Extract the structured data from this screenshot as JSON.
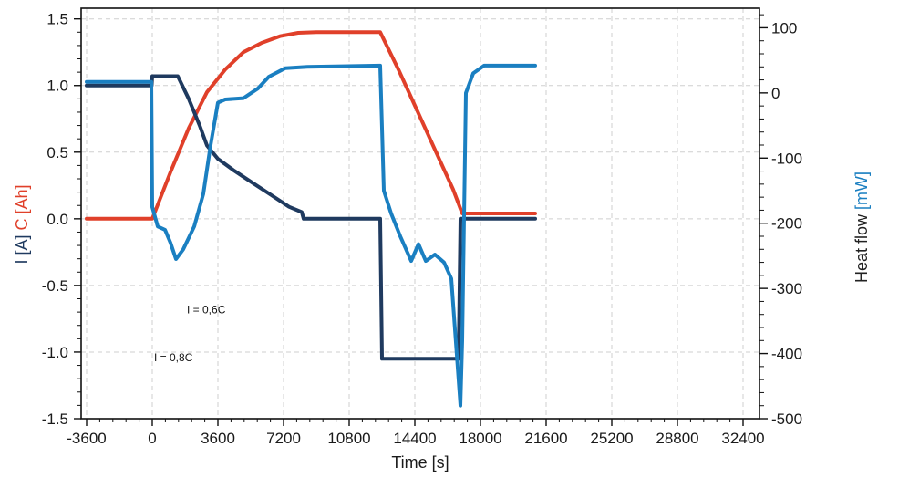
{
  "chart_data": {
    "type": "line",
    "xlabel": "Time [s]",
    "ylabel_parts": [
      {
        "text": "I [A]",
        "color": "#1f3a5f"
      },
      {
        "text": " C [Ah]",
        "color": "#e0402a"
      }
    ],
    "y2label_parts": [
      {
        "text": "Heat flow ",
        "color": "#222222"
      },
      {
        "text": "[mW]",
        "color": "#1a7fc1"
      }
    ],
    "xlim": [
      -3900,
      33300
    ],
    "ylim": [
      -1.5,
      1.58
    ],
    "y2lim": [
      -500,
      130
    ],
    "x_ticks": [
      -3600,
      0,
      3600,
      7200,
      10800,
      14400,
      18000,
      21600,
      25200,
      28800,
      32400
    ],
    "y_ticks": [
      -1.5,
      -1.0,
      -0.5,
      0.0,
      0.5,
      1.0,
      1.5
    ],
    "y_tick_labels": [
      "-1.5",
      "-1.0",
      "-0.5",
      "0.0",
      "0.5",
      "1.0",
      "1.5"
    ],
    "y2_ticks": [
      -500,
      -400,
      -300,
      -200,
      -100,
      0,
      100
    ],
    "y2_tick_labels": [
      "-500",
      "-400",
      "-300",
      "-200",
      "-100",
      "0",
      "100"
    ],
    "grid": true,
    "annotations": [
      {
        "text": "I = 0,6C",
        "x": 1900,
        "y": -0.71
      },
      {
        "text": "I = 0,8C",
        "x": 100,
        "y": -1.07
      }
    ],
    "series": [
      {
        "axis": "left",
        "color": "#e0402a",
        "x": [
          -3600,
          0,
          1000,
          2000,
          3000,
          4000,
          5000,
          6000,
          7000,
          8000,
          9000,
          10000,
          11000,
          12500,
          13500,
          14500,
          15500,
          16500,
          17000,
          18000,
          19000,
          20000,
          21000
        ],
        "y": [
          0.0,
          0.0,
          0.35,
          0.68,
          0.95,
          1.12,
          1.25,
          1.32,
          1.37,
          1.395,
          1.4,
          1.4,
          1.4,
          1.4,
          1.12,
          0.82,
          0.52,
          0.22,
          0.04,
          0.04,
          0.04,
          0.04,
          0.04
        ]
      },
      {
        "axis": "left",
        "color": "#1f3a5f",
        "x": [
          -3600,
          -30,
          0,
          1400,
          2000,
          2600,
          3000,
          3600,
          4500,
          5500,
          6500,
          7500,
          8200,
          8300,
          9000,
          12500,
          12600,
          16800,
          16900,
          21000
        ],
        "y": [
          1.0,
          1.0,
          1.07,
          1.07,
          0.9,
          0.7,
          0.55,
          0.45,
          0.36,
          0.27,
          0.18,
          0.09,
          0.05,
          0.0,
          0.0,
          0.0,
          -1.05,
          -1.05,
          0.0,
          0.0
        ]
      },
      {
        "axis": "right",
        "color": "#1a7fc1",
        "x": [
          -3600,
          -50,
          0,
          300,
          700,
          1000,
          1300,
          1700,
          2300,
          2800,
          3200,
          3600,
          4000,
          5000,
          5800,
          6400,
          7300,
          8500,
          12500,
          12700,
          13100,
          13600,
          14200,
          14600,
          15000,
          15500,
          16000,
          16400,
          16900,
          17000,
          17200,
          17600,
          18200,
          21000
        ],
        "y": [
          17,
          17,
          -175,
          -205,
          -210,
          -230,
          -255,
          -240,
          -205,
          -155,
          -80,
          -15,
          -10,
          -8,
          7,
          25,
          38,
          40,
          42,
          -150,
          -185,
          -220,
          -258,
          -232,
          -258,
          -248,
          -260,
          -285,
          -480,
          -380,
          0,
          30,
          42,
          42
        ]
      }
    ]
  }
}
